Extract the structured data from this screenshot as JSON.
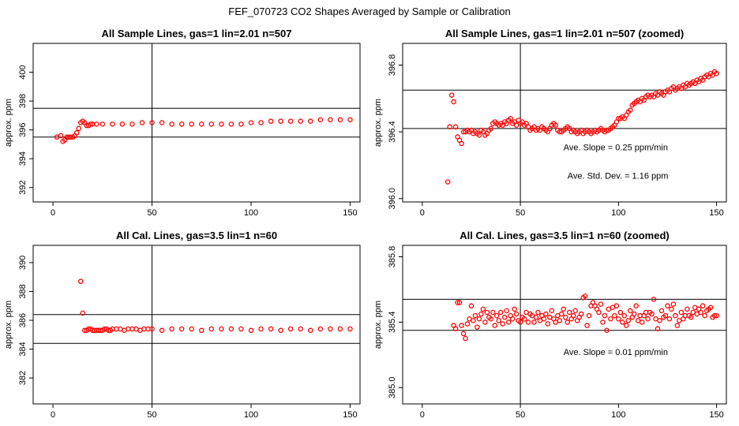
{
  "figure": {
    "title": "FEF_070723  CO2 Shapes Averaged by Sample or Calibration"
  },
  "chart_data": [
    {
      "type": "scatter",
      "title": "All Sample Lines, gas=1 lin=2.01 n=507",
      "xlabel": "",
      "ylabel": "approx. ppm",
      "xlim": [
        -10,
        155
      ],
      "ylim": [
        391,
        402
      ],
      "xticks": [
        0,
        50,
        100,
        150
      ],
      "yticks": [
        392,
        394,
        396,
        398,
        400
      ],
      "grid": false,
      "hlines": [
        395.5,
        397.5
      ],
      "vlines": [
        50
      ],
      "annotations": [],
      "marker_color": "#ff0000",
      "series": [
        {
          "x": [
            2,
            4,
            5,
            6,
            7,
            8,
            9,
            10,
            11,
            12,
            13,
            14,
            15,
            16,
            17,
            18,
            19,
            20,
            22,
            25,
            30,
            35,
            40,
            45,
            50,
            55,
            60,
            65,
            70,
            75,
            80,
            85,
            90,
            95,
            100,
            105,
            110,
            115,
            120,
            125,
            130,
            135,
            140,
            145,
            150
          ],
          "y": [
            395.5,
            395.6,
            395.2,
            395.3,
            395.5,
            395.5,
            395.5,
            395.5,
            395.6,
            395.8,
            396.1,
            396.5,
            396.6,
            396.5,
            396.3,
            396.3,
            396.4,
            396.4,
            396.4,
            396.4,
            396.4,
            396.4,
            396.4,
            396.5,
            396.5,
            396.5,
            396.4,
            396.4,
            396.4,
            396.4,
            396.4,
            396.4,
            396.4,
            396.4,
            396.5,
            396.5,
            396.6,
            396.6,
            396.6,
            396.6,
            396.6,
            396.7,
            396.7,
            396.7,
            396.7
          ]
        }
      ]
    },
    {
      "type": "scatter",
      "title": "All Sample Lines, gas=1 lin=2.01 n=507 (zoomed)",
      "xlabel": "",
      "ylabel": "approx. ppm",
      "xlim": [
        -10,
        155
      ],
      "ylim": [
        395.98,
        396.93
      ],
      "xticks": [
        0,
        50,
        100,
        150
      ],
      "yticks": [
        396.0,
        396.4,
        396.8
      ],
      "ytick_labels": [
        "396.0",
        "396.4",
        "396.8"
      ],
      "grid": false,
      "hlines": [
        396.42,
        396.65
      ],
      "vlines": [
        50
      ],
      "annotations": [
        {
          "text": "Ave. Slope =  0.25  ppm/min",
          "x": 72,
          "y": 396.29
        },
        {
          "text": "Ave. Std. Dev. =  1.16  ppm",
          "x": 74,
          "y": 396.12
        }
      ],
      "marker_color": "#ff0000",
      "series": [
        {
          "x": [
            13,
            14,
            15,
            16,
            17,
            18,
            19,
            20,
            21,
            22,
            23,
            24,
            25,
            26,
            27,
            28,
            29,
            30,
            31,
            32,
            33,
            34,
            35,
            36,
            37,
            38,
            39,
            40,
            41,
            42,
            43,
            44,
            45,
            46,
            47,
            48,
            49,
            50,
            51,
            52,
            53,
            54,
            55,
            56,
            57,
            58,
            59,
            60,
            61,
            62,
            63,
            64,
            65,
            66,
            67,
            68,
            69,
            70,
            71,
            72,
            73,
            74,
            75,
            76,
            77,
            78,
            79,
            80,
            81,
            82,
            83,
            84,
            85,
            86,
            87,
            88,
            89,
            90,
            91,
            92,
            93,
            94,
            95,
            96,
            97,
            98,
            99,
            100,
            101,
            102,
            103,
            104,
            105,
            106,
            107,
            108,
            109,
            110,
            111,
            112,
            113,
            114,
            115,
            116,
            117,
            118,
            119,
            120,
            121,
            122,
            123,
            124,
            125,
            126,
            127,
            128,
            129,
            130,
            131,
            132,
            133,
            134,
            135,
            136,
            137,
            138,
            139,
            140,
            141,
            142,
            143,
            144,
            145,
            146,
            147,
            148,
            149,
            150
          ],
          "y": [
            396.1,
            396.43,
            396.62,
            396.58,
            396.43,
            396.37,
            396.35,
            396.33,
            396.4,
            396.4,
            396.41,
            396.4,
            396.41,
            396.39,
            396.4,
            396.39,
            396.38,
            396.41,
            396.4,
            396.38,
            396.39,
            396.41,
            396.42,
            396.45,
            396.46,
            396.45,
            396.44,
            396.45,
            396.44,
            396.46,
            396.45,
            396.47,
            396.48,
            396.45,
            396.46,
            396.44,
            396.47,
            396.45,
            396.46,
            396.44,
            396.45,
            396.43,
            396.41,
            396.42,
            396.43,
            396.41,
            396.42,
            396.41,
            396.43,
            396.42,
            396.41,
            396.4,
            396.42,
            396.44,
            396.45,
            396.44,
            396.41,
            396.4,
            396.4,
            396.41,
            396.42,
            396.43,
            396.42,
            396.4,
            396.41,
            396.4,
            396.39,
            396.4,
            396.41,
            396.39,
            396.4,
            396.41,
            396.4,
            396.39,
            396.4,
            396.41,
            396.4,
            396.41,
            396.42,
            396.41,
            396.4,
            396.41,
            396.41,
            396.42,
            396.43,
            396.44,
            396.46,
            396.48,
            396.48,
            396.49,
            396.48,
            396.5,
            396.52,
            396.53,
            396.56,
            396.57,
            396.58,
            396.59,
            396.58,
            396.6,
            396.59,
            396.61,
            396.62,
            396.61,
            396.62,
            396.61,
            396.63,
            396.62,
            396.64,
            396.63,
            396.62,
            396.64,
            396.65,
            396.64,
            396.66,
            396.67,
            396.65,
            396.66,
            396.67,
            396.66,
            396.68,
            396.67,
            396.69,
            396.68,
            396.69,
            396.7,
            396.69,
            396.71,
            396.7,
            396.72,
            396.71,
            396.73,
            396.74,
            396.73,
            396.75,
            396.74,
            396.76,
            396.75
          ]
        }
      ]
    },
    {
      "type": "scatter",
      "title": "All Cal. Lines, gas=3.5 lin=1 n=60",
      "xlabel": "",
      "ylabel": "approx. ppm",
      "xlim": [
        -10,
        155
      ],
      "ylim": [
        380.2,
        391.2
      ],
      "xticks": [
        0,
        50,
        100,
        150
      ],
      "yticks": [
        382,
        384,
        386,
        388,
        390
      ],
      "grid": false,
      "hlines": [
        384.4,
        386.4
      ],
      "vlines": [
        50
      ],
      "annotations": [],
      "marker_color": "#ff0000",
      "series": [
        {
          "x": [
            14,
            15,
            16,
            17,
            18,
            19,
            20,
            21,
            22,
            23,
            24,
            25,
            26,
            27,
            28,
            29,
            30,
            32,
            34,
            36,
            38,
            40,
            42,
            44,
            46,
            48,
            50,
            55,
            60,
            65,
            70,
            75,
            80,
            85,
            90,
            95,
            100,
            105,
            110,
            115,
            120,
            125,
            130,
            135,
            140,
            145,
            150
          ],
          "y": [
            388.7,
            386.5,
            385.3,
            385.3,
            385.4,
            385.4,
            385.3,
            385.3,
            385.3,
            385.3,
            385.3,
            385.3,
            385.4,
            385.4,
            385.3,
            385.3,
            385.4,
            385.4,
            385.4,
            385.3,
            385.4,
            385.4,
            385.4,
            385.3,
            385.4,
            385.4,
            385.4,
            385.3,
            385.4,
            385.4,
            385.4,
            385.3,
            385.4,
            385.4,
            385.4,
            385.4,
            385.3,
            385.4,
            385.4,
            385.3,
            385.4,
            385.4,
            385.3,
            385.4,
            385.4,
            385.4,
            385.4
          ]
        }
      ]
    },
    {
      "type": "scatter",
      "title": "All Cal. Lines, gas=3.5 lin=1 n=60 (zoomed)",
      "xlabel": "",
      "ylabel": "approx. ppm",
      "xlim": [
        -10,
        155
      ],
      "ylim": [
        384.9,
        385.87
      ],
      "xticks": [
        0,
        50,
        100,
        150
      ],
      "yticks": [
        385.0,
        385.4,
        385.8
      ],
      "ytick_labels": [
        "385.0",
        "385.4",
        "385.8"
      ],
      "grid": false,
      "hlines": [
        385.35,
        385.54
      ],
      "vlines": [
        50
      ],
      "annotations": [
        {
          "text": "Ave. Slope =  0.01  ppm/min",
          "x": 72,
          "y": 385.2
        }
      ],
      "marker_color": "#ff0000",
      "series": [
        {
          "x": [
            16,
            17,
            18,
            19,
            20,
            21,
            22,
            23,
            24,
            25,
            26,
            27,
            28,
            29,
            30,
            31,
            32,
            33,
            34,
            35,
            36,
            37,
            38,
            39,
            40,
            41,
            42,
            43,
            44,
            45,
            46,
            47,
            48,
            49,
            50,
            51,
            52,
            53,
            54,
            55,
            56,
            57,
            58,
            59,
            60,
            61,
            62,
            63,
            64,
            65,
            66,
            67,
            68,
            69,
            70,
            71,
            72,
            73,
            74,
            75,
            76,
            77,
            78,
            79,
            80,
            81,
            82,
            83,
            84,
            85,
            86,
            87,
            88,
            89,
            90,
            91,
            92,
            93,
            94,
            95,
            96,
            97,
            98,
            99,
            100,
            101,
            102,
            103,
            104,
            105,
            106,
            107,
            108,
            109,
            110,
            111,
            112,
            113,
            114,
            115,
            116,
            117,
            118,
            119,
            120,
            121,
            122,
            123,
            124,
            125,
            126,
            127,
            128,
            129,
            130,
            131,
            132,
            133,
            134,
            135,
            136,
            137,
            138,
            139,
            140,
            141,
            142,
            143,
            144,
            145,
            146,
            147,
            148,
            149,
            150
          ],
          "y": [
            385.38,
            385.36,
            385.52,
            385.52,
            385.38,
            385.33,
            385.3,
            385.39,
            385.42,
            385.5,
            385.41,
            385.44,
            385.37,
            385.42,
            385.45,
            385.48,
            385.4,
            385.46,
            385.43,
            385.42,
            385.46,
            385.38,
            385.44,
            385.41,
            385.46,
            385.39,
            385.43,
            385.47,
            385.4,
            385.44,
            385.42,
            385.48,
            385.45,
            385.41,
            385.4,
            385.43,
            385.42,
            385.46,
            385.4,
            385.45,
            385.44,
            385.4,
            385.43,
            385.46,
            385.41,
            385.44,
            385.42,
            385.45,
            385.39,
            385.43,
            385.47,
            385.42,
            385.4,
            385.44,
            385.41,
            385.45,
            385.48,
            385.43,
            385.4,
            385.46,
            385.42,
            385.44,
            385.47,
            385.41,
            385.43,
            385.45,
            385.55,
            385.56,
            385.38,
            385.44,
            385.5,
            385.52,
            385.5,
            385.48,
            385.46,
            385.51,
            385.4,
            385.44,
            385.35,
            385.48,
            385.42,
            385.49,
            385.44,
            385.5,
            385.42,
            385.46,
            385.4,
            385.44,
            385.38,
            385.41,
            385.47,
            385.43,
            385.45,
            385.5,
            385.41,
            385.44,
            385.4,
            385.44,
            385.46,
            385.42,
            385.46,
            385.45,
            385.54,
            385.42,
            385.36,
            385.41,
            385.47,
            385.43,
            385.44,
            385.5,
            385.42,
            385.48,
            385.51,
            385.44,
            385.38,
            385.41,
            385.46,
            385.42,
            385.44,
            385.48,
            385.44,
            385.43,
            385.46,
            385.49,
            385.45,
            385.48,
            385.46,
            385.5,
            385.44,
            385.47,
            385.48,
            385.49,
            385.43,
            385.44,
            385.44
          ]
        }
      ]
    }
  ]
}
